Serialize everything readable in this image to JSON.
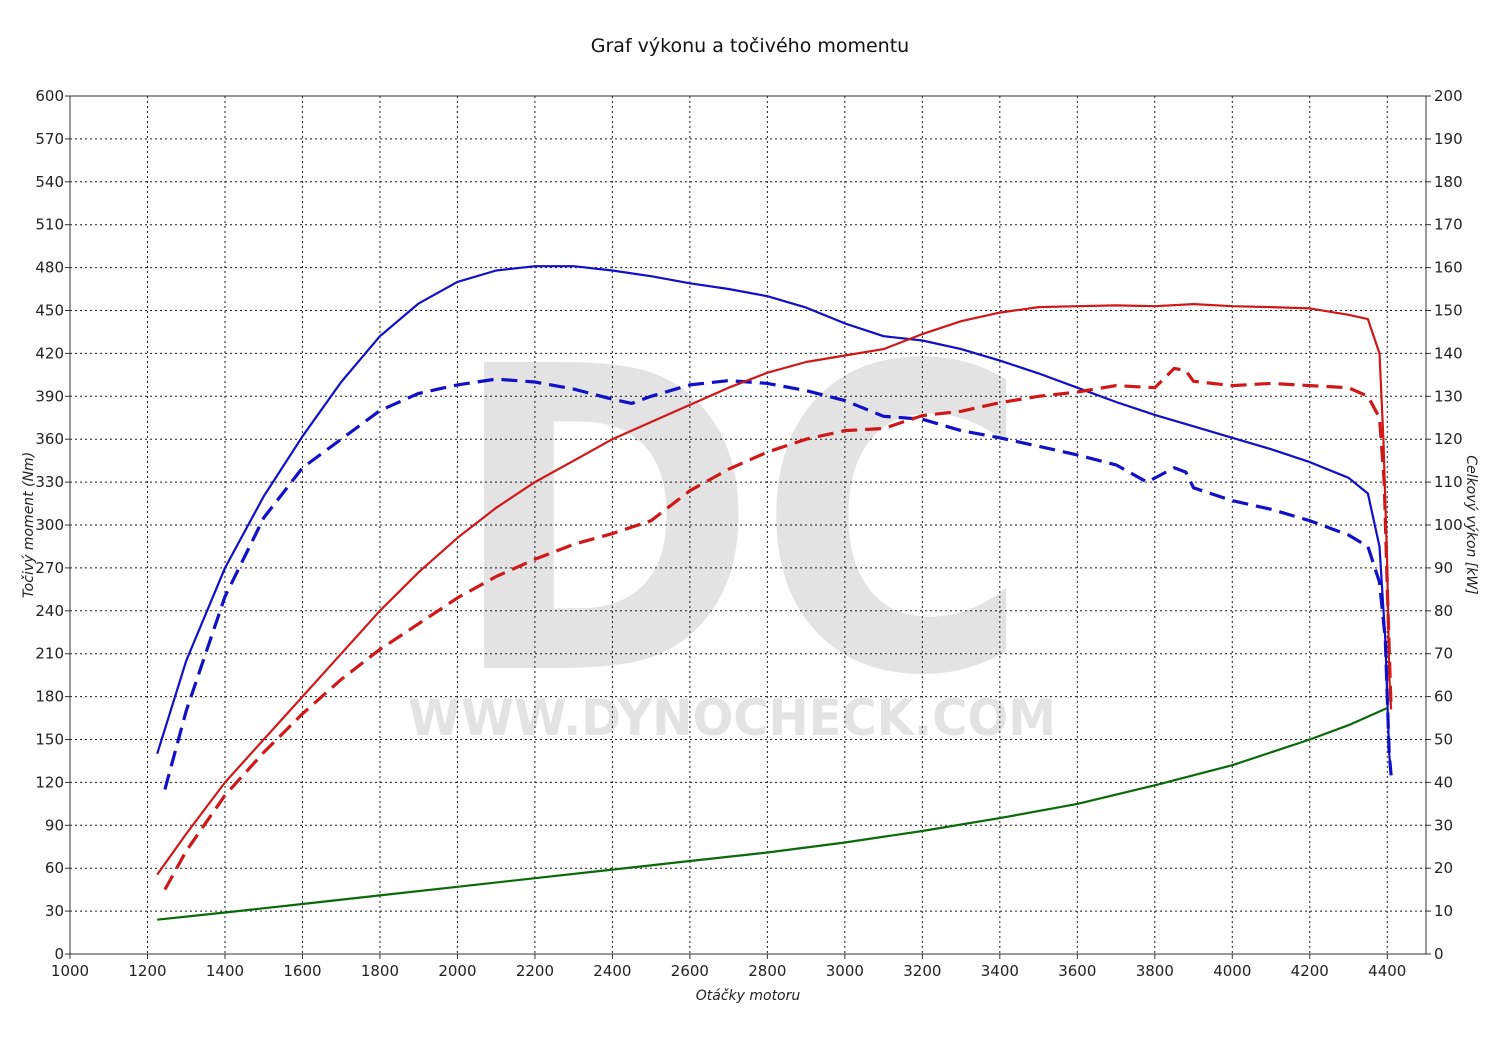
{
  "chart_data": {
    "type": "line",
    "title": "Graf výkonu a točivého momentu",
    "xlabel": "Otáčky motoru",
    "ylabel_left": "Točivý moment (Nm)",
    "ylabel_right": "Celkový výkon [kW]",
    "xlim": [
      1000,
      4500
    ],
    "ylim_left": [
      0,
      600
    ],
    "ylim_right": [
      0,
      200
    ],
    "x_ticks": [
      1000,
      1200,
      1400,
      1600,
      1800,
      2000,
      2200,
      2400,
      2600,
      2800,
      3000,
      3200,
      3400,
      3600,
      3800,
      4000,
      4200,
      4400
    ],
    "y_ticks_left": [
      0,
      30,
      60,
      90,
      120,
      150,
      180,
      210,
      240,
      270,
      300,
      330,
      360,
      390,
      420,
      450,
      480,
      510,
      540,
      570,
      600
    ],
    "y_ticks_right": [
      0,
      10,
      20,
      30,
      40,
      50,
      60,
      70,
      80,
      90,
      100,
      110,
      120,
      130,
      140,
      150,
      160,
      170,
      180,
      190,
      200
    ],
    "grid": true,
    "watermark": {
      "logo": "DC",
      "url": "WWW.DYNOCHECK.COM"
    },
    "series": [
      {
        "axis": "left",
        "color": "#1010c8",
        "dashed": false,
        "points": [
          [
            1225,
            140
          ],
          [
            1300,
            205
          ],
          [
            1400,
            270
          ],
          [
            1500,
            320
          ],
          [
            1600,
            362
          ],
          [
            1700,
            400
          ],
          [
            1800,
            432
          ],
          [
            1900,
            455
          ],
          [
            2000,
            470
          ],
          [
            2100,
            478
          ],
          [
            2200,
            481
          ],
          [
            2300,
            481
          ],
          [
            2400,
            478
          ],
          [
            2500,
            474
          ],
          [
            2600,
            469
          ],
          [
            2700,
            465
          ],
          [
            2800,
            460
          ],
          [
            2900,
            452
          ],
          [
            3000,
            441
          ],
          [
            3100,
            432
          ],
          [
            3200,
            429
          ],
          [
            3300,
            423
          ],
          [
            3400,
            415
          ],
          [
            3500,
            406
          ],
          [
            3600,
            396
          ],
          [
            3700,
            386
          ],
          [
            3800,
            377
          ],
          [
            3900,
            369
          ],
          [
            4000,
            361
          ],
          [
            4100,
            353
          ],
          [
            4200,
            344
          ],
          [
            4300,
            333
          ],
          [
            4350,
            322
          ],
          [
            4380,
            285
          ],
          [
            4395,
            220
          ],
          [
            4405,
            140
          ],
          [
            4410,
            125
          ]
        ]
      },
      {
        "axis": "left",
        "color": "#1010c8",
        "dashed": true,
        "points": [
          [
            1245,
            115
          ],
          [
            1300,
            170
          ],
          [
            1400,
            250
          ],
          [
            1500,
            305
          ],
          [
            1600,
            340
          ],
          [
            1700,
            360
          ],
          [
            1800,
            380
          ],
          [
            1900,
            392
          ],
          [
            2000,
            398
          ],
          [
            2100,
            402
          ],
          [
            2200,
            400
          ],
          [
            2300,
            395
          ],
          [
            2400,
            388
          ],
          [
            2450,
            385
          ],
          [
            2500,
            390
          ],
          [
            2600,
            398
          ],
          [
            2700,
            401
          ],
          [
            2800,
            399
          ],
          [
            2900,
            394
          ],
          [
            3000,
            387
          ],
          [
            3100,
            376
          ],
          [
            3200,
            374
          ],
          [
            3300,
            366
          ],
          [
            3400,
            361
          ],
          [
            3500,
            355
          ],
          [
            3600,
            349
          ],
          [
            3700,
            342
          ],
          [
            3780,
            330
          ],
          [
            3850,
            340
          ],
          [
            3880,
            337
          ],
          [
            3900,
            326
          ],
          [
            4000,
            317
          ],
          [
            4100,
            311
          ],
          [
            4200,
            303
          ],
          [
            4300,
            293
          ],
          [
            4350,
            285
          ],
          [
            4380,
            260
          ],
          [
            4395,
            220
          ],
          [
            4405,
            140
          ],
          [
            4410,
            125
          ]
        ]
      },
      {
        "axis": "right",
        "color": "#d01818",
        "dashed": false,
        "points": [
          [
            1225,
            18.5
          ],
          [
            1300,
            28
          ],
          [
            1400,
            40
          ],
          [
            1500,
            50
          ],
          [
            1600,
            60
          ],
          [
            1700,
            70
          ],
          [
            1800,
            80
          ],
          [
            1900,
            89
          ],
          [
            2000,
            97
          ],
          [
            2100,
            104
          ],
          [
            2200,
            110
          ],
          [
            2300,
            115
          ],
          [
            2400,
            120
          ],
          [
            2500,
            124
          ],
          [
            2600,
            128
          ],
          [
            2700,
            132
          ],
          [
            2800,
            135.5
          ],
          [
            2900,
            138
          ],
          [
            3000,
            139.5
          ],
          [
            3100,
            141
          ],
          [
            3200,
            144.5
          ],
          [
            3300,
            147.5
          ],
          [
            3400,
            149.5
          ],
          [
            3500,
            150.8
          ],
          [
            3600,
            151
          ],
          [
            3700,
            151.2
          ],
          [
            3800,
            151
          ],
          [
            3900,
            151.5
          ],
          [
            4000,
            151
          ],
          [
            4100,
            150.8
          ],
          [
            4200,
            150.5
          ],
          [
            4300,
            149
          ],
          [
            4350,
            148
          ],
          [
            4380,
            140
          ],
          [
            4390,
            120
          ],
          [
            4400,
            90
          ],
          [
            4405,
            65
          ],
          [
            4410,
            57
          ]
        ]
      },
      {
        "axis": "right",
        "color": "#d01818",
        "dashed": true,
        "points": [
          [
            1245,
            15
          ],
          [
            1300,
            24
          ],
          [
            1400,
            37
          ],
          [
            1500,
            47
          ],
          [
            1600,
            56
          ],
          [
            1700,
            64
          ],
          [
            1800,
            71
          ],
          [
            1900,
            77
          ],
          [
            2000,
            83
          ],
          [
            2100,
            88
          ],
          [
            2200,
            92
          ],
          [
            2300,
            95.5
          ],
          [
            2400,
            98
          ],
          [
            2500,
            101
          ],
          [
            2600,
            108
          ],
          [
            2700,
            113
          ],
          [
            2800,
            117
          ],
          [
            2900,
            120
          ],
          [
            3000,
            122
          ],
          [
            3100,
            122.5
          ],
          [
            3150,
            124
          ],
          [
            3200,
            125.5
          ],
          [
            3300,
            126.5
          ],
          [
            3400,
            128.5
          ],
          [
            3500,
            130
          ],
          [
            3600,
            131
          ],
          [
            3700,
            132.5
          ],
          [
            3800,
            132
          ],
          [
            3850,
            136.5
          ],
          [
            3880,
            136
          ],
          [
            3900,
            133.5
          ],
          [
            4000,
            132.5
          ],
          [
            4100,
            133
          ],
          [
            4200,
            132.5
          ],
          [
            4300,
            132
          ],
          [
            4350,
            130
          ],
          [
            4380,
            125
          ],
          [
            4392,
            110
          ],
          [
            4402,
            80
          ],
          [
            4410,
            57
          ]
        ]
      },
      {
        "axis": "left",
        "color": "#0a6a0a",
        "dashed": false,
        "points": [
          [
            1225,
            24
          ],
          [
            1400,
            29
          ],
          [
            1600,
            35
          ],
          [
            1800,
            41
          ],
          [
            2000,
            47
          ],
          [
            2200,
            53
          ],
          [
            2400,
            59
          ],
          [
            2600,
            65
          ],
          [
            2800,
            71
          ],
          [
            3000,
            78
          ],
          [
            3200,
            86
          ],
          [
            3400,
            95
          ],
          [
            3600,
            105
          ],
          [
            3800,
            118
          ],
          [
            4000,
            132
          ],
          [
            4200,
            150
          ],
          [
            4300,
            160
          ],
          [
            4400,
            172
          ]
        ]
      }
    ]
  }
}
